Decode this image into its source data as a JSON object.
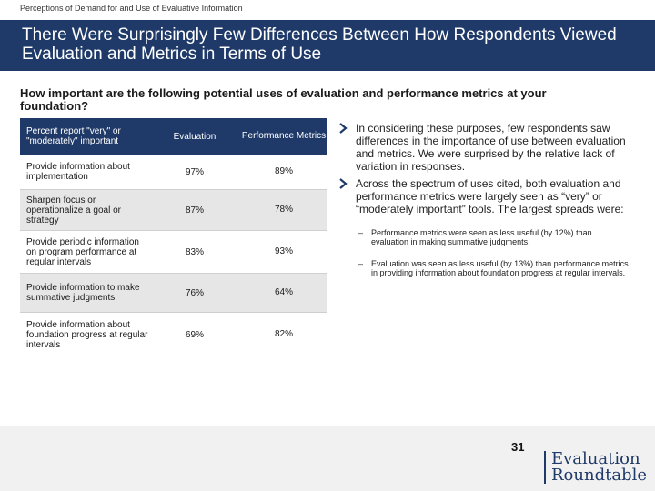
{
  "header": {
    "breadcrumb": "Perceptions of Demand for and Use of Evaluative Information",
    "title": "There Were Surprisingly Few Differences Between How Respondents Viewed Evaluation and Metrics in Terms of Use"
  },
  "question": "How important are the following potential uses of evaluation and performance metrics at your foundation?",
  "table": {
    "headers": [
      "Percent report \"very\" or \"moderately\" important",
      "Evaluation",
      "Performance Metrics"
    ],
    "rows": [
      {
        "label": "Provide information about implementation",
        "evaluation": "97%",
        "metrics": "89%"
      },
      {
        "label": "Sharpen focus or operationalize a goal or strategy",
        "evaluation": "87%",
        "metrics": "78%"
      },
      {
        "label": "Provide periodic information on program performance at regular intervals",
        "evaluation": "83%",
        "metrics": "93%"
      },
      {
        "label": "Provide information to make summative judgments",
        "evaluation": "76%",
        "metrics": "64%"
      },
      {
        "label": "Provide information about foundation progress at regular intervals",
        "evaluation": "69%",
        "metrics": "82%"
      }
    ]
  },
  "bullets": [
    "In considering these purposes, few respondents saw differences in the importance of use between evaluation and metrics. We were surprised by the relative lack of variation in responses.",
    "Across the spectrum of uses cited, both evaluation and performance metrics were largely seen as “very” or “moderately important” tools. The largest spreads were:"
  ],
  "sub_bullets": [
    "Performance metrics were seen as less useful (by 12%) than evaluation in making summative judgments.",
    "Evaluation was seen as less useful (by 13%) than performance metrics in providing information about foundation progress at regular intervals."
  ],
  "footer": {
    "page_number": "31",
    "logo_line1": "Evaluation",
    "logo_line2": "Roundtable"
  },
  "colors": {
    "brand": "#1f3a68",
    "shade": "#e6e6e6"
  }
}
